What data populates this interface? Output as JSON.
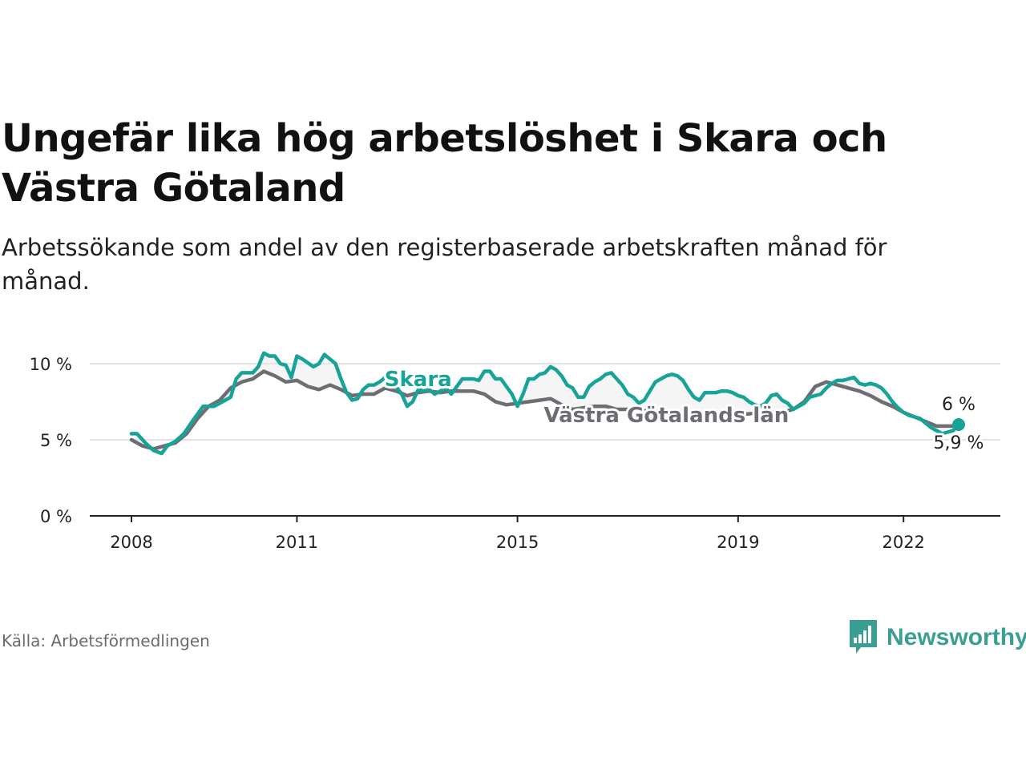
{
  "title": "Ungefär lika hög arbetslöshet i Skara och Västra Götaland",
  "subtitle": "Arbetssökande som andel av den registerbaserade arbetskraften månad för månad.",
  "source": "Källa: Arbetsförmedlingen",
  "brand": {
    "name": "Newsworthy",
    "icon": "newsworthy-logo-icon",
    "color": "#3a9e92"
  },
  "colors": {
    "skara": "#17a398",
    "vg": "#6e6d73",
    "grid": "#d9d9d9",
    "axis": "#222222"
  },
  "chart_data": {
    "type": "line",
    "title": "Ungefär lika hög arbetslöshet i Skara och Västra Götaland",
    "xlabel": "",
    "ylabel": "",
    "xlim": [
      2008.0,
      2023.0
    ],
    "ylim": [
      0,
      10
    ],
    "x_ticks": [
      {
        "value": 2008,
        "label": "2008"
      },
      {
        "value": 2011,
        "label": "2011"
      },
      {
        "value": 2015,
        "label": "2015"
      },
      {
        "value": 2019,
        "label": "2019"
      },
      {
        "value": 2022,
        "label": "2022"
      }
    ],
    "y_ticks": [
      {
        "value": 0,
        "label": "0 %"
      },
      {
        "value": 5,
        "label": "5 %"
      },
      {
        "value": 10,
        "label": "10 %"
      }
    ],
    "series": [
      {
        "name": "Skara",
        "label": "Skara",
        "end_label": "6 %",
        "points": [
          [
            2008.0,
            5.4
          ],
          [
            2008.1,
            5.4
          ],
          [
            2008.25,
            4.8
          ],
          [
            2008.4,
            4.3
          ],
          [
            2008.55,
            4.1
          ],
          [
            2008.65,
            4.6
          ],
          [
            2008.8,
            4.9
          ],
          [
            2008.95,
            5.4
          ],
          [
            2009.1,
            6.2
          ],
          [
            2009.3,
            7.2
          ],
          [
            2009.5,
            7.2
          ],
          [
            2009.6,
            7.4
          ],
          [
            2009.7,
            7.6
          ],
          [
            2009.8,
            7.8
          ],
          [
            2009.9,
            9.0
          ],
          [
            2010.0,
            9.4
          ],
          [
            2010.2,
            9.4
          ],
          [
            2010.3,
            9.8
          ],
          [
            2010.4,
            10.7
          ],
          [
            2010.5,
            10.5
          ],
          [
            2010.6,
            10.5
          ],
          [
            2010.7,
            10.0
          ],
          [
            2010.8,
            9.9
          ],
          [
            2010.9,
            9.1
          ],
          [
            2011.0,
            10.5
          ],
          [
            2011.1,
            10.3
          ],
          [
            2011.3,
            9.8
          ],
          [
            2011.4,
            10.0
          ],
          [
            2011.5,
            10.6
          ],
          [
            2011.6,
            10.3
          ],
          [
            2011.7,
            10.0
          ],
          [
            2011.8,
            9.0
          ],
          [
            2011.9,
            8.1
          ],
          [
            2012.0,
            7.6
          ],
          [
            2012.1,
            7.7
          ],
          [
            2012.2,
            8.3
          ],
          [
            2012.3,
            8.6
          ],
          [
            2012.4,
            8.6
          ],
          [
            2012.5,
            8.8
          ],
          [
            2012.6,
            9.1
          ],
          [
            2012.7,
            9.0
          ],
          [
            2012.8,
            8.5
          ],
          [
            2012.9,
            8.0
          ],
          [
            2013.0,
            7.2
          ],
          [
            2013.1,
            7.5
          ],
          [
            2013.2,
            8.3
          ],
          [
            2013.3,
            8.2
          ],
          [
            2013.4,
            8.3
          ],
          [
            2013.5,
            8.0
          ],
          [
            2013.6,
            8.2
          ],
          [
            2013.7,
            8.4
          ],
          [
            2013.8,
            8.0
          ],
          [
            2013.9,
            8.5
          ],
          [
            2014.0,
            9.0
          ],
          [
            2014.1,
            9.0
          ],
          [
            2014.2,
            9.0
          ],
          [
            2014.3,
            8.9
          ],
          [
            2014.4,
            9.5
          ],
          [
            2014.5,
            9.5
          ],
          [
            2014.6,
            9.0
          ],
          [
            2014.7,
            9.0
          ],
          [
            2014.8,
            8.5
          ],
          [
            2014.9,
            8.0
          ],
          [
            2015.0,
            7.2
          ],
          [
            2015.1,
            8.0
          ],
          [
            2015.2,
            9.0
          ],
          [
            2015.3,
            9.0
          ],
          [
            2015.4,
            9.3
          ],
          [
            2015.5,
            9.4
          ],
          [
            2015.6,
            9.8
          ],
          [
            2015.7,
            9.6
          ],
          [
            2015.8,
            9.2
          ],
          [
            2015.9,
            8.6
          ],
          [
            2016.0,
            8.4
          ],
          [
            2016.1,
            7.8
          ],
          [
            2016.2,
            7.8
          ],
          [
            2016.3,
            8.5
          ],
          [
            2016.4,
            8.8
          ],
          [
            2016.5,
            9.0
          ],
          [
            2016.6,
            9.3
          ],
          [
            2016.7,
            9.4
          ],
          [
            2016.8,
            9.0
          ],
          [
            2016.9,
            8.6
          ],
          [
            2017.0,
            8.0
          ],
          [
            2017.1,
            7.8
          ],
          [
            2017.2,
            7.4
          ],
          [
            2017.3,
            7.6
          ],
          [
            2017.4,
            8.2
          ],
          [
            2017.5,
            8.8
          ],
          [
            2017.6,
            9.0
          ],
          [
            2017.7,
            9.2
          ],
          [
            2017.8,
            9.3
          ],
          [
            2017.9,
            9.2
          ],
          [
            2018.0,
            8.9
          ],
          [
            2018.1,
            8.3
          ],
          [
            2018.2,
            7.8
          ],
          [
            2018.3,
            7.6
          ],
          [
            2018.4,
            8.1
          ],
          [
            2018.5,
            8.1
          ],
          [
            2018.6,
            8.1
          ],
          [
            2018.7,
            8.2
          ],
          [
            2018.8,
            8.2
          ],
          [
            2018.9,
            8.1
          ],
          [
            2019.0,
            7.9
          ],
          [
            2019.1,
            7.8
          ],
          [
            2019.2,
            7.5
          ],
          [
            2019.3,
            7.3
          ],
          [
            2019.4,
            7.2
          ],
          [
            2019.5,
            7.4
          ],
          [
            2019.6,
            7.9
          ],
          [
            2019.7,
            8.0
          ],
          [
            2019.8,
            7.6
          ],
          [
            2019.9,
            7.4
          ],
          [
            2020.0,
            7.0
          ],
          [
            2020.1,
            7.2
          ],
          [
            2020.2,
            7.4
          ],
          [
            2020.3,
            7.8
          ],
          [
            2020.4,
            7.9
          ],
          [
            2020.5,
            8.0
          ],
          [
            2020.6,
            8.4
          ],
          [
            2020.7,
            8.7
          ],
          [
            2020.8,
            8.9
          ],
          [
            2020.9,
            8.9
          ],
          [
            2021.0,
            9.0
          ],
          [
            2021.1,
            9.1
          ],
          [
            2021.2,
            8.7
          ],
          [
            2021.3,
            8.6
          ],
          [
            2021.4,
            8.7
          ],
          [
            2021.5,
            8.6
          ],
          [
            2021.6,
            8.4
          ],
          [
            2021.7,
            8.0
          ],
          [
            2021.8,
            7.5
          ],
          [
            2021.9,
            7.1
          ],
          [
            2022.0,
            6.8
          ],
          [
            2022.1,
            6.6
          ],
          [
            2022.2,
            6.5
          ],
          [
            2022.3,
            6.4
          ],
          [
            2022.4,
            6.1
          ],
          [
            2022.5,
            5.8
          ],
          [
            2022.6,
            5.6
          ],
          [
            2022.7,
            5.4
          ],
          [
            2022.8,
            5.5
          ],
          [
            2022.9,
            5.6
          ],
          [
            2023.0,
            6.0
          ]
        ]
      },
      {
        "name": "Västra Götalands län",
        "label": "Västra Götalands län",
        "end_label": "5,9 %",
        "points": [
          [
            2008.0,
            5.0
          ],
          [
            2008.2,
            4.6
          ],
          [
            2008.4,
            4.4
          ],
          [
            2008.6,
            4.6
          ],
          [
            2008.8,
            4.8
          ],
          [
            2009.0,
            5.4
          ],
          [
            2009.2,
            6.4
          ],
          [
            2009.4,
            7.2
          ],
          [
            2009.6,
            7.6
          ],
          [
            2009.8,
            8.4
          ],
          [
            2010.0,
            8.8
          ],
          [
            2010.2,
            9.0
          ],
          [
            2010.4,
            9.5
          ],
          [
            2010.6,
            9.2
          ],
          [
            2010.8,
            8.8
          ],
          [
            2011.0,
            8.9
          ],
          [
            2011.2,
            8.5
          ],
          [
            2011.4,
            8.3
          ],
          [
            2011.6,
            8.6
          ],
          [
            2011.8,
            8.3
          ],
          [
            2012.0,
            7.9
          ],
          [
            2012.2,
            8.0
          ],
          [
            2012.4,
            8.0
          ],
          [
            2012.6,
            8.4
          ],
          [
            2012.8,
            8.2
          ],
          [
            2013.0,
            7.9
          ],
          [
            2013.2,
            8.1
          ],
          [
            2013.4,
            8.2
          ],
          [
            2013.6,
            8.1
          ],
          [
            2013.8,
            8.2
          ],
          [
            2014.0,
            8.2
          ],
          [
            2014.2,
            8.2
          ],
          [
            2014.4,
            8.0
          ],
          [
            2014.6,
            7.5
          ],
          [
            2014.8,
            7.3
          ],
          [
            2015.0,
            7.4
          ],
          [
            2015.2,
            7.5
          ],
          [
            2015.4,
            7.6
          ],
          [
            2015.6,
            7.7
          ],
          [
            2015.8,
            7.3
          ],
          [
            2016.0,
            7.0
          ],
          [
            2016.2,
            7.1
          ],
          [
            2016.4,
            7.2
          ],
          [
            2016.6,
            7.2
          ],
          [
            2016.8,
            7.0
          ],
          [
            2017.0,
            7.0
          ],
          [
            2017.2,
            6.9
          ],
          [
            2017.4,
            6.9
          ],
          [
            2017.6,
            6.9
          ],
          [
            2017.8,
            6.8
          ],
          [
            2018.0,
            6.7
          ],
          [
            2018.2,
            6.7
          ],
          [
            2018.4,
            6.7
          ],
          [
            2018.6,
            6.7
          ],
          [
            2018.8,
            6.7
          ],
          [
            2019.0,
            6.7
          ],
          [
            2019.2,
            6.7
          ],
          [
            2019.4,
            6.8
          ],
          [
            2019.6,
            6.8
          ],
          [
            2019.8,
            6.8
          ],
          [
            2020.0,
            7.0
          ],
          [
            2020.2,
            7.5
          ],
          [
            2020.4,
            8.5
          ],
          [
            2020.6,
            8.8
          ],
          [
            2020.8,
            8.6
          ],
          [
            2021.0,
            8.4
          ],
          [
            2021.2,
            8.2
          ],
          [
            2021.4,
            7.9
          ],
          [
            2021.6,
            7.5
          ],
          [
            2021.8,
            7.2
          ],
          [
            2022.0,
            6.8
          ],
          [
            2022.2,
            6.5
          ],
          [
            2022.4,
            6.2
          ],
          [
            2022.6,
            5.9
          ],
          [
            2022.8,
            5.9
          ],
          [
            2023.0,
            5.9
          ]
        ]
      }
    ]
  }
}
